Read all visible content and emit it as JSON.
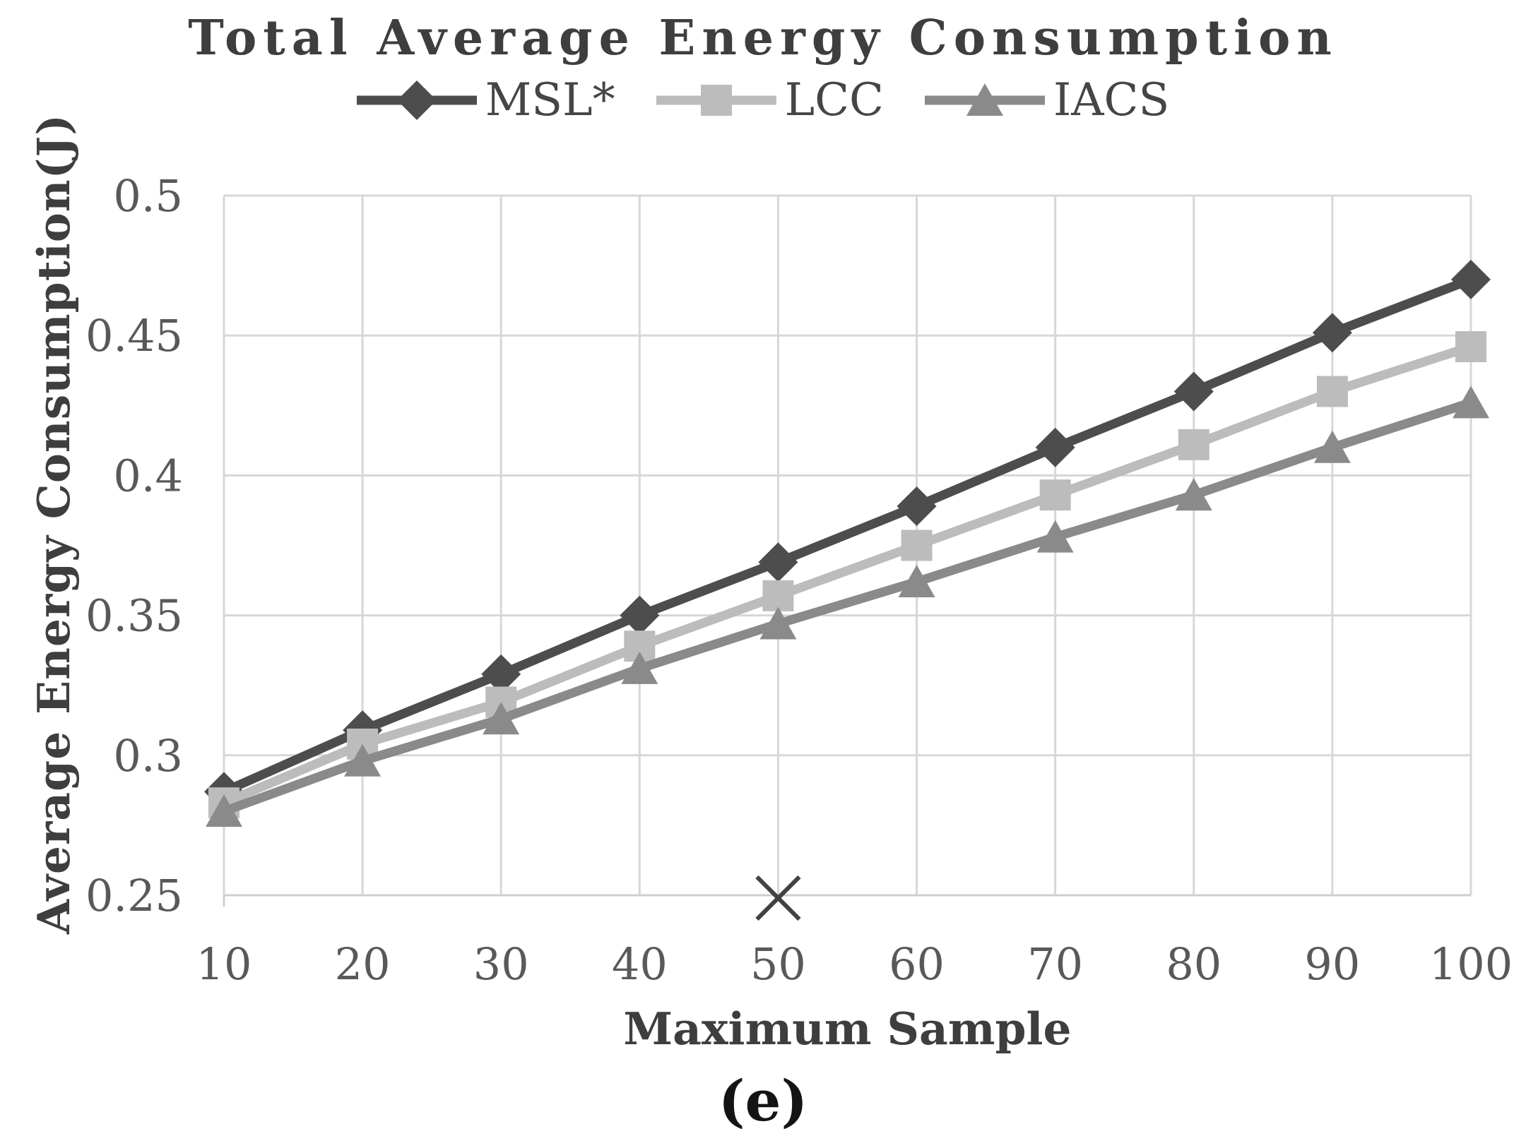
{
  "chart_data": {
    "type": "line",
    "title": "Total Average Energy Consumption",
    "xlabel": "Maximum Sample",
    "ylabel": "Average Energy Consumption(J)",
    "caption": "(e)",
    "legend_position": "top",
    "grid": true,
    "x": [
      10,
      20,
      30,
      40,
      50,
      60,
      70,
      80,
      90,
      100
    ],
    "xlim": [
      10,
      100
    ],
    "ylim": [
      0.25,
      0.5
    ],
    "y_tick_values": [
      0.25,
      0.3,
      0.35,
      0.4,
      0.45,
      0.5
    ],
    "y_tick_labels": [
      "0.25",
      "0.3",
      "0.35",
      "0.4",
      "0.45",
      "0.5"
    ],
    "series": [
      {
        "name": "MSL*",
        "marker": "diamond",
        "color": "#4d4d4d",
        "values": [
          0.287,
          0.309,
          0.329,
          0.35,
          0.369,
          0.389,
          0.41,
          0.43,
          0.451,
          0.47
        ]
      },
      {
        "name": "LCC",
        "marker": "square",
        "color": "#bcbcbc",
        "values": [
          0.283,
          0.304,
          0.319,
          0.339,
          0.357,
          0.375,
          0.393,
          0.411,
          0.43,
          0.446
        ]
      },
      {
        "name": "IACS",
        "marker": "triangle",
        "color": "#8a8a8a",
        "values": [
          0.28,
          0.298,
          0.313,
          0.331,
          0.347,
          0.362,
          0.378,
          0.393,
          0.41,
          0.426
        ]
      }
    ],
    "stray_marker": {
      "marker": "x",
      "x": 50,
      "value": 0.249,
      "color": "#424242"
    },
    "colors": {
      "gridline": "#d7d7d7",
      "axis_line": "#cfcfcf",
      "tick_text": "#595959",
      "title_text": "#3e3e3e",
      "caption_text": "#141414"
    }
  }
}
